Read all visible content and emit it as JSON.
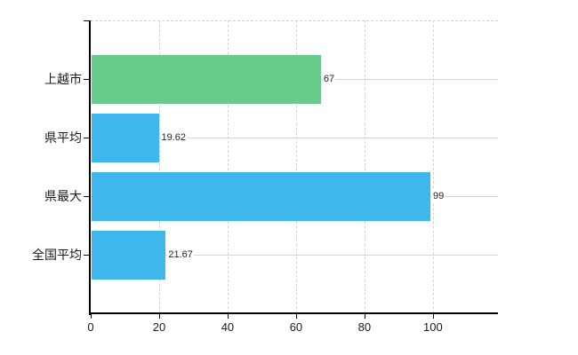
{
  "chart_data": {
    "type": "bar",
    "orientation": "horizontal",
    "title": "",
    "xlabel": "",
    "ylabel": "",
    "categories": [
      "上越市",
      "県平均",
      "県最大",
      "全国平均"
    ],
    "values": [
      67,
      19.62,
      99,
      21.67
    ],
    "value_labels": [
      "67",
      "19.62",
      "99",
      "21.67"
    ],
    "bar_colors": [
      "#69cc8c",
      "#3eb8ec",
      "#3eb8ec",
      "#3eb8ec"
    ],
    "x_ticks": [
      "0",
      "20",
      "40",
      "60",
      "80",
      "100"
    ],
    "xlim": [
      0,
      119
    ],
    "grid": true,
    "legend": false
  },
  "colors": {
    "background": "#ffffff",
    "bar_green": "#69cc8c",
    "bar_blue": "#3eb8ec",
    "axis": "#000000",
    "gridline": "#d4d4d4",
    "text": "#1a1a1a"
  }
}
